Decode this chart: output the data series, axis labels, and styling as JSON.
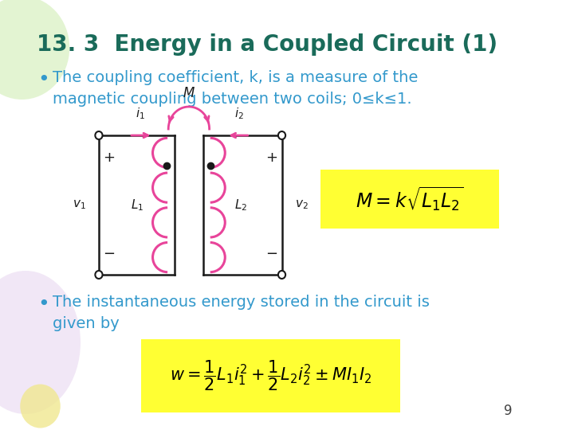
{
  "title": "13. 3  Energy in a Coupled Circuit (1)",
  "title_color": "#1a6b5a",
  "title_fontsize": 20,
  "bg_color": "#ffffff",
  "bullet1": "The coupling coefficient, k, is a measure of the\nmagnetic coupling between two coils; 0≤k≤1.",
  "bullet2": "The instantaneous energy stored in the circuit is\ngiven by",
  "bullet_color": "#3399cc",
  "bullet_fontsize": 14,
  "page_number": "9",
  "circuit_pink": "#e8449a",
  "circuit_black": "#1a1a1a",
  "blob1_color": "#d8f0c0",
  "blob2_color": "#e8d8f0",
  "blob3_color": "#f0e890"
}
